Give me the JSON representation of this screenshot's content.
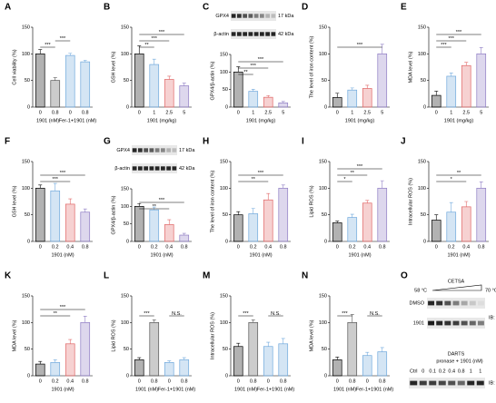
{
  "chart_data": [
    {
      "type": "bar",
      "panel": "A",
      "ylabel": "Cell viability (%)",
      "categories": [
        "0",
        "0.8",
        "0",
        "0.8"
      ],
      "xgroups": [
        "1901 (nM)",
        "Fer-1+1901 (nM)"
      ],
      "values": [
        100,
        50,
        97,
        85
      ],
      "errors": [
        8,
        5,
        4,
        3
      ],
      "colors": [
        "#000000",
        "#555555",
        "#6fa8dc",
        "#6fa8dc"
      ],
      "ylim": [
        0,
        150
      ],
      "yticks": [
        0,
        50,
        100,
        150
      ],
      "significance": [
        {
          "label": "***",
          "between": [
            0,
            1
          ]
        },
        {
          "label": "***",
          "between": [
            1,
            2
          ]
        }
      ]
    },
    {
      "type": "bar",
      "panel": "B",
      "ylabel": "GSH level (%)",
      "categories": [
        "0",
        "1",
        "2.5",
        "5"
      ],
      "xlabel": "1901 (mg/kg)",
      "values": [
        100,
        80,
        52,
        40
      ],
      "errors": [
        15,
        10,
        6,
        5
      ],
      "colors": [
        "#000000",
        "#6fa8dc",
        "#e06666",
        "#8e7cc3"
      ],
      "ylim": [
        0,
        150
      ],
      "yticks": [
        0,
        50,
        100,
        150
      ],
      "significance": [
        {
          "label": "**",
          "between": [
            0,
            1
          ]
        },
        {
          "label": "***",
          "between": [
            0,
            2
          ]
        },
        {
          "label": "***",
          "between": [
            0,
            3
          ]
        }
      ]
    },
    {
      "type": "bar",
      "panel": "C",
      "ylabel": "GPX4/β-actin (%)",
      "blot": [
        {
          "name": "GPX4",
          "size": "17 kDa"
        },
        {
          "name": "β-actin",
          "size": "42 kDa"
        }
      ],
      "categories": [
        "0",
        "1",
        "2.5",
        "5"
      ],
      "xlabel": "1901 (mg/kg)",
      "values": [
        100,
        45,
        28,
        12
      ],
      "errors": [
        15,
        6,
        5,
        4
      ],
      "colors": [
        "#000000",
        "#6fa8dc",
        "#e06666",
        "#8e7cc3"
      ],
      "ylim": [
        0,
        150
      ],
      "yticks": [
        0,
        50,
        100,
        150
      ],
      "significance": [
        {
          "label": "**",
          "between": [
            0,
            1
          ]
        },
        {
          "label": "***",
          "between": [
            0,
            2
          ]
        },
        {
          "label": "***",
          "between": [
            0,
            3
          ]
        }
      ]
    },
    {
      "type": "bar",
      "panel": "D",
      "ylabel": "The level of iron content (%)",
      "categories": [
        "0",
        "1",
        "2.5",
        "5"
      ],
      "xlabel": "1901 (mg/kg)",
      "values": [
        18,
        32,
        35,
        100
      ],
      "errors": [
        8,
        4,
        6,
        18
      ],
      "colors": [
        "#000000",
        "#6fa8dc",
        "#e06666",
        "#8e7cc3"
      ],
      "ylim": [
        0,
        150
      ],
      "yticks": [
        0,
        50,
        100,
        150
      ],
      "significance": [
        {
          "label": "***",
          "between": [
            0,
            3
          ]
        }
      ]
    },
    {
      "type": "bar",
      "panel": "E",
      "ylabel": "MDA level (%)",
      "categories": [
        "0",
        "1",
        "2.5",
        "5"
      ],
      "xlabel": "1901 (mg/kg)",
      "values": [
        22,
        58,
        78,
        100
      ],
      "errors": [
        8,
        6,
        6,
        12
      ],
      "colors": [
        "#000000",
        "#6fa8dc",
        "#e06666",
        "#8e7cc3"
      ],
      "ylim": [
        0,
        150
      ],
      "yticks": [
        0,
        50,
        100,
        150
      ],
      "significance": [
        {
          "label": "***",
          "between": [
            0,
            1
          ]
        },
        {
          "label": "***",
          "between": [
            0,
            2
          ]
        },
        {
          "label": "***",
          "between": [
            0,
            3
          ]
        }
      ]
    },
    {
      "type": "bar",
      "panel": "F",
      "ylabel": "GSH level (%)",
      "categories": [
        "0",
        "0.2",
        "0.4",
        "0.8"
      ],
      "xlabel": "1901 (nM)",
      "values": [
        100,
        95,
        70,
        55
      ],
      "errors": [
        6,
        14,
        10,
        6
      ],
      "colors": [
        "#000000",
        "#6fa8dc",
        "#e06666",
        "#8e7cc3"
      ],
      "ylim": [
        0,
        150
      ],
      "yticks": [
        0,
        50,
        100,
        150
      ],
      "significance": [
        {
          "label": "***",
          "between": [
            0,
            2
          ]
        },
        {
          "label": "***",
          "between": [
            0,
            3
          ]
        }
      ]
    },
    {
      "type": "bar",
      "panel": "G",
      "ylabel": "GPX4/β-actin (%)",
      "blot": [
        {
          "name": "GPX4",
          "size": "17 kDa"
        },
        {
          "name": "β-actin",
          "size": "42 kDa"
        }
      ],
      "categories": [
        "0",
        "0.2",
        "0.4",
        "0.8"
      ],
      "xlabel": "1901 (nM)",
      "values": [
        100,
        90,
        48,
        18
      ],
      "errors": [
        8,
        8,
        14,
        5
      ],
      "colors": [
        "#000000",
        "#6fa8dc",
        "#e06666",
        "#8e7cc3"
      ],
      "ylim": [
        0,
        150
      ],
      "yticks": [
        0,
        50,
        100,
        150
      ],
      "significance": [
        {
          "label": "**",
          "between": [
            0,
            2
          ]
        },
        {
          "label": "***",
          "between": [
            0,
            3
          ]
        }
      ]
    },
    {
      "type": "bar",
      "panel": "H",
      "ylabel": "The level of iron content (%)",
      "categories": [
        "0",
        "0.2",
        "0.4",
        "0.8"
      ],
      "xlabel": "1901 (nM)",
      "values": [
        50,
        52,
        78,
        100
      ],
      "errors": [
        6,
        10,
        12,
        6
      ],
      "colors": [
        "#000000",
        "#6fa8dc",
        "#e06666",
        "#8e7cc3"
      ],
      "ylim": [
        0,
        150
      ],
      "yticks": [
        0,
        50,
        100,
        150
      ],
      "significance": [
        {
          "label": "**",
          "between": [
            0,
            2
          ]
        },
        {
          "label": "***",
          "between": [
            0,
            3
          ]
        }
      ]
    },
    {
      "type": "bar",
      "panel": "I",
      "ylabel": "Lipid ROS (%)",
      "categories": [
        "0",
        "0.2",
        "0.4",
        "0.8"
      ],
      "xlabel": "1901 (nM)",
      "values": [
        35,
        45,
        72,
        100
      ],
      "errors": [
        3,
        6,
        5,
        14
      ],
      "colors": [
        "#000000",
        "#6fa8dc",
        "#e06666",
        "#8e7cc3"
      ],
      "ylim": [
        0,
        150
      ],
      "yticks": [
        0,
        50,
        100,
        150
      ],
      "significance": [
        {
          "label": "*",
          "between": [
            0,
            1
          ]
        },
        {
          "label": "**",
          "between": [
            0,
            2
          ]
        },
        {
          "label": "***",
          "between": [
            0,
            3
          ]
        }
      ]
    },
    {
      "type": "bar",
      "panel": "J",
      "ylabel": "Intracellular ROS (%)",
      "categories": [
        "0",
        "0.2",
        "0.4",
        "0.8"
      ],
      "xlabel": "1901 (nM)",
      "values": [
        40,
        55,
        65,
        100
      ],
      "errors": [
        10,
        18,
        10,
        12
      ],
      "colors": [
        "#000000",
        "#6fa8dc",
        "#e06666",
        "#8e7cc3"
      ],
      "ylim": [
        0,
        150
      ],
      "yticks": [
        0,
        50,
        100,
        150
      ],
      "significance": [
        {
          "label": "*",
          "between": [
            0,
            2
          ]
        },
        {
          "label": "**",
          "between": [
            0,
            3
          ]
        }
      ]
    },
    {
      "type": "bar",
      "panel": "K",
      "ylabel": "MDA level (%)",
      "categories": [
        "0",
        "0.2",
        "0.4",
        "0.8"
      ],
      "xlabel": "1901 (nM)",
      "values": [
        22,
        25,
        60,
        100
      ],
      "errors": [
        5,
        5,
        8,
        12
      ],
      "colors": [
        "#000000",
        "#6fa8dc",
        "#e06666",
        "#8e7cc3"
      ],
      "ylim": [
        0,
        150
      ],
      "yticks": [
        0,
        50,
        100,
        150
      ],
      "significance": [
        {
          "label": "**",
          "between": [
            0,
            2
          ]
        },
        {
          "label": "***",
          "between": [
            0,
            3
          ]
        }
      ]
    },
    {
      "type": "bar",
      "panel": "L",
      "ylabel": "Lipid ROS (%)",
      "categories": [
        "0",
        "0.8",
        "0",
        "0.8"
      ],
      "xgroups": [
        "1901 (nM)",
        "Fer-1+1901 (nM)"
      ],
      "values": [
        30,
        100,
        25,
        30
      ],
      "errors": [
        4,
        5,
        3,
        4
      ],
      "colors": [
        "#000000",
        "#555555",
        "#6fa8dc",
        "#6fa8dc"
      ],
      "ylim": [
        0,
        150
      ],
      "yticks": [
        0,
        50,
        100,
        150
      ],
      "significance": [
        {
          "label": "***",
          "between": [
            0,
            1
          ]
        },
        {
          "label": "N.S.",
          "between": [
            2,
            3
          ]
        }
      ]
    },
    {
      "type": "bar",
      "panel": "M",
      "ylabel": "Intracellular ROS (%)",
      "categories": [
        "0",
        "0.8",
        "0",
        "0.8"
      ],
      "xgroups": [
        "1901 (nM)",
        "Fer-1+1901 (nM)"
      ],
      "values": [
        55,
        100,
        55,
        60
      ],
      "errors": [
        6,
        5,
        8,
        10
      ],
      "colors": [
        "#000000",
        "#555555",
        "#6fa8dc",
        "#6fa8dc"
      ],
      "ylim": [
        0,
        150
      ],
      "yticks": [
        0,
        50,
        100,
        150
      ],
      "significance": [
        {
          "label": "***",
          "between": [
            0,
            1
          ]
        },
        {
          "label": "N.S.",
          "between": [
            2,
            3
          ]
        }
      ]
    },
    {
      "type": "bar",
      "panel": "N",
      "ylabel": "MDA level (%)",
      "categories": [
        "0",
        "0.8",
        "0",
        "0.8"
      ],
      "xgroups": [
        "1901 (nM)",
        "Fer-1+1901 (nM)"
      ],
      "values": [
        30,
        100,
        38,
        45
      ],
      "errors": [
        5,
        15,
        6,
        8
      ],
      "colors": [
        "#000000",
        "#555555",
        "#6fa8dc",
        "#6fa8dc"
      ],
      "ylim": [
        0,
        150
      ],
      "yticks": [
        0,
        50,
        100,
        150
      ],
      "significance": [
        {
          "label": "***",
          "between": [
            0,
            1
          ]
        },
        {
          "label": "N.S.",
          "between": [
            2,
            3
          ]
        }
      ]
    },
    {
      "type": "blot",
      "panel": "O",
      "title": "CETSA",
      "temps": [
        "58 °C",
        "70 °C"
      ],
      "rows": [
        "DMSO",
        "1901"
      ],
      "probe": "IB: GSS",
      "darts": {
        "title": "DARTS",
        "treatment": "pronase + 1901 (nM)",
        "lanes": [
          "Ctrl",
          "0",
          "0.1",
          "0.2",
          "0.4",
          "0.8",
          "1",
          "1"
        ],
        "probe": "IB: GSS"
      }
    }
  ]
}
